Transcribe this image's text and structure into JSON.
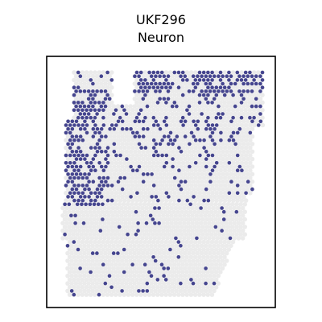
{
  "chart_data": {
    "type": "scatter",
    "title": [
      "UKF296",
      "Neuron"
    ],
    "xlabel": "",
    "ylabel": "",
    "grid": false,
    "legend": "none",
    "background_spot_color": "#ebebeb",
    "highlight_spot_color": "#45458f",
    "frame_color": "#000000",
    "series": [
      {
        "name": "",
        "density_by_region": {
          "top_edge_band": 0.7,
          "left_upper_cluster": 0.6,
          "upper_middle": 0.28,
          "middle": 0.16,
          "lower_half": 0.07
        }
      }
    ]
  }
}
